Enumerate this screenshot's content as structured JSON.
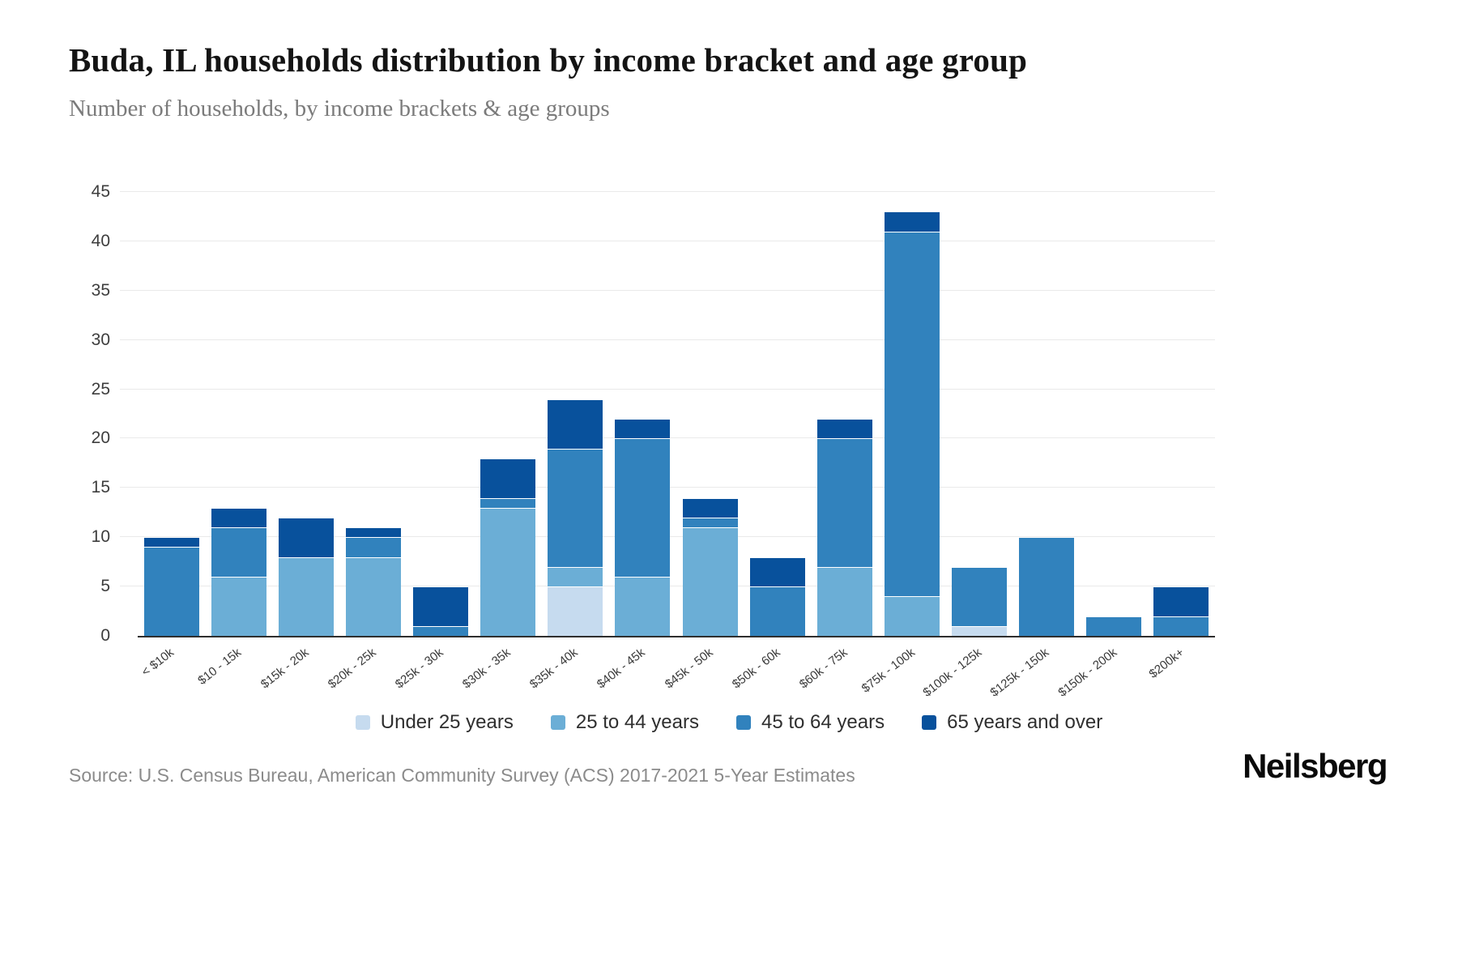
{
  "chart_data": {
    "type": "bar",
    "stacked": true,
    "title": "Buda, IL households distribution by income bracket and age group",
    "subtitle": "Number of households, by income brackets & age groups",
    "categories": [
      "< $10k",
      "$10 - 15k",
      "$15k - 20k",
      "$20k - 25k",
      "$25k - 30k",
      "$30k - 35k",
      "$35k - 40k",
      "$40k - 45k",
      "$45k - 50k",
      "$50k - 60k",
      "$60k - 75k",
      "$75k - 100k",
      "$100k - 125k",
      "$125k - 150k",
      "$150k - 200k",
      "$200k+"
    ],
    "series": [
      {
        "name": "Under 25 years",
        "color": "#c6dbef",
        "values": [
          0,
          0,
          0,
          0,
          0,
          0,
          5,
          0,
          0,
          0,
          0,
          0,
          1,
          0,
          0,
          0
        ]
      },
      {
        "name": "25 to 44 years",
        "color": "#6baed6",
        "values": [
          0,
          6,
          8,
          8,
          0,
          13,
          2,
          6,
          11,
          0,
          7,
          4,
          0,
          0,
          0,
          0
        ]
      },
      {
        "name": "45 to 64 years",
        "color": "#3182bd",
        "values": [
          9,
          5,
          0,
          2,
          1,
          1,
          12,
          14,
          1,
          5,
          13,
          37,
          6,
          10,
          2,
          2
        ]
      },
      {
        "name": "65 years and over",
        "color": "#08519c",
        "values": [
          1,
          2,
          4,
          1,
          4,
          4,
          5,
          2,
          2,
          3,
          2,
          2,
          0,
          0,
          0,
          3
        ]
      }
    ],
    "ylim": [
      0,
      45
    ],
    "yticks": [
      0,
      5,
      10,
      15,
      20,
      25,
      30,
      35,
      40,
      45
    ],
    "grid": true,
    "legend_position": "bottom"
  },
  "footer": {
    "source": "Source: U.S. Census Bureau, American Community Survey (ACS) 2017-2021 5-Year Estimates",
    "brand": "Neilsberg"
  }
}
